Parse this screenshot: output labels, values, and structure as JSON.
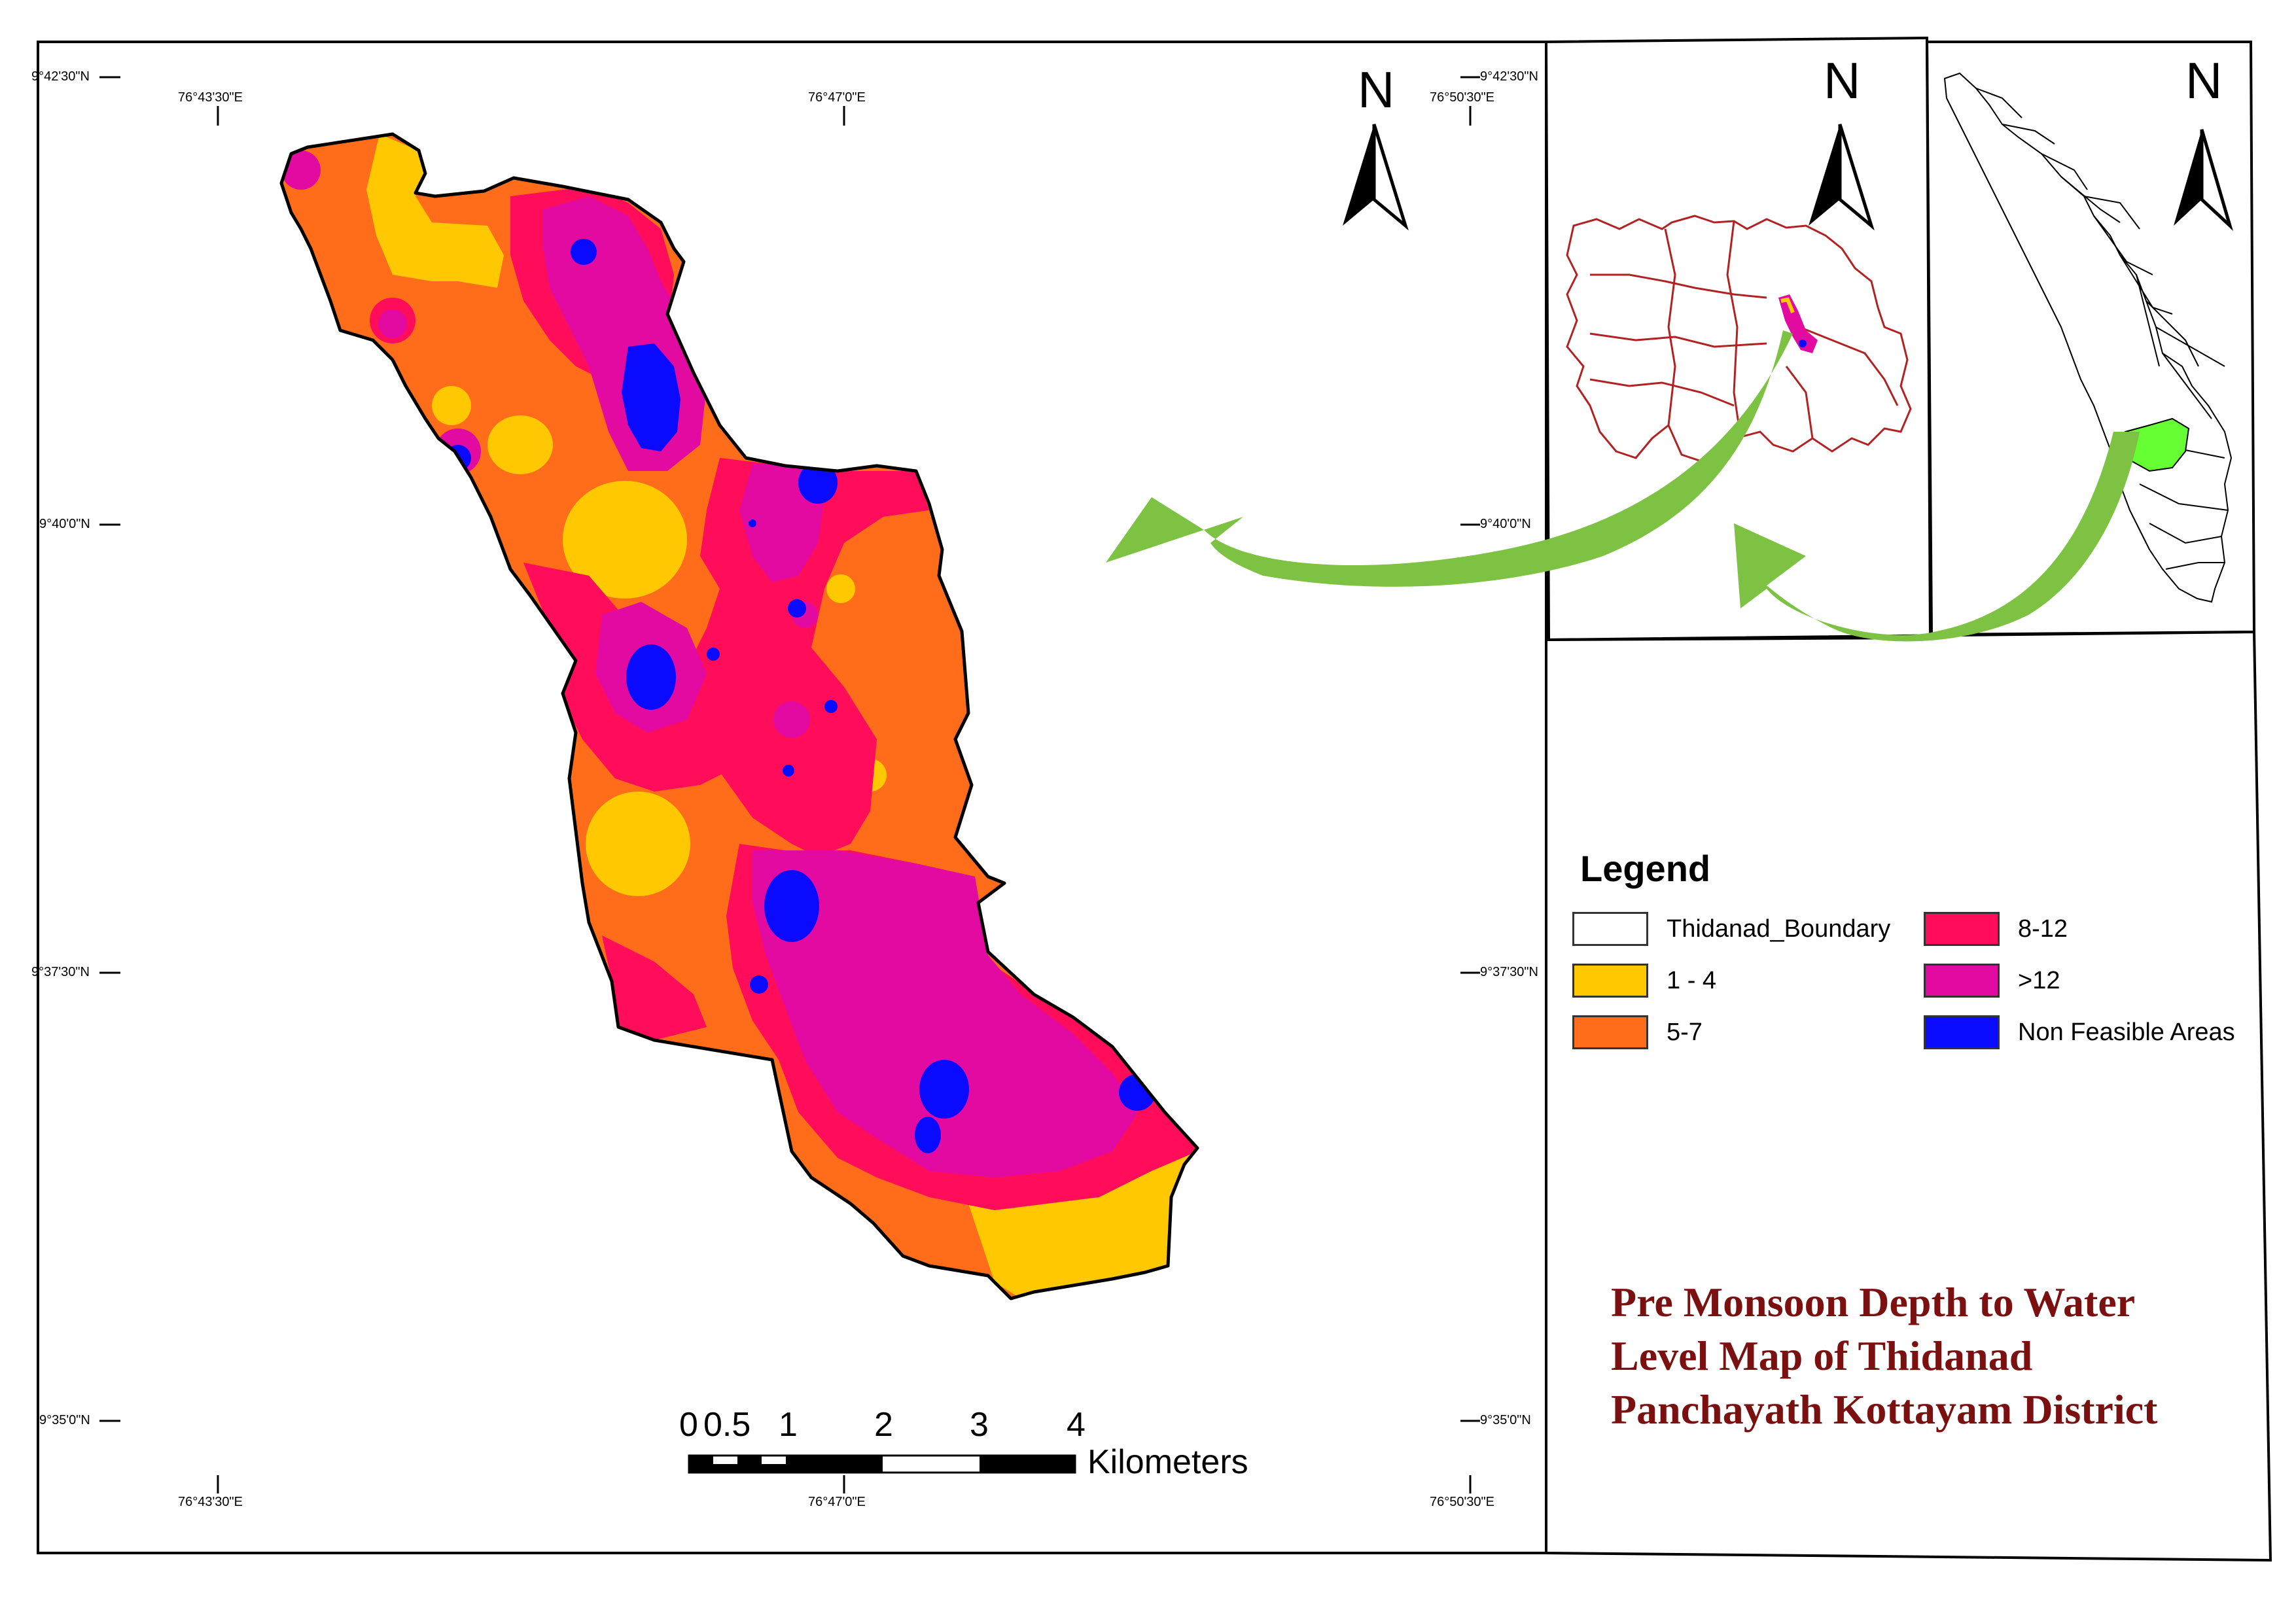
{
  "main_map": {
    "coords": {
      "lat_9_42_30_left": "9°42'30\"N",
      "lat_9_42_30_right": "9°42'30\"N",
      "lat_9_40_0_left": "9°40'0\"N",
      "lat_9_40_0_right": "9°40'0\"N",
      "lat_9_37_30_left": "9°37'30\"N",
      "lat_9_37_30_right": "9°37'30\"N",
      "lat_9_35_0_left": "9°35'0\"N",
      "lat_9_35_0_right": "9°35'0\"N",
      "lon_76_43_30_top": "76°43'30\"E",
      "lon_76_47_0_top": "76°47'0\"E",
      "lon_76_50_30_top": "76°50'30\"E",
      "lon_76_43_30_bottom": "76°43'30\"E",
      "lon_76_47_0_bottom": "76°47'0\"E",
      "lon_76_50_30_bottom": "76°50'30\"E"
    },
    "north_label": "N"
  },
  "inset_district": {
    "north_label": "N"
  },
  "inset_state": {
    "north_label": "N"
  },
  "legend": {
    "title": "Legend",
    "items": [
      {
        "label": "Thidanad_Boundary",
        "color": "#ffffff"
      },
      {
        "label": "8-12",
        "color": "#ff0d5b"
      },
      {
        "label": "1 - 4",
        "color": "#ffc800"
      },
      {
        "label": ">12",
        "color": "#e20aa0"
      },
      {
        "label": "5-7",
        "color": "#ff6d1b"
      },
      {
        "label": "Non Feasible Areas",
        "color": "#0a0aff"
      }
    ]
  },
  "scale_bar": {
    "ticks": [
      "0",
      "0.5",
      "1",
      "2",
      "3",
      "4"
    ],
    "unit": "Kilometers"
  },
  "title": {
    "line1": "Pre Monsoon Depth to Water",
    "line2": "Level Map of Thidanad",
    "line3": "Panchayath Kottayam District"
  },
  "colors": {
    "class_1_4": "#ffc800",
    "class_5_7": "#ff6d1b",
    "class_8_12": "#ff0d5b",
    "class_gt12": "#e20aa0",
    "non_feasible": "#0a0aff",
    "arrow_green": "#7dc242",
    "highlight_green": "#66ff33",
    "district_outline": "#b22222",
    "title_color": "#7a1010"
  }
}
